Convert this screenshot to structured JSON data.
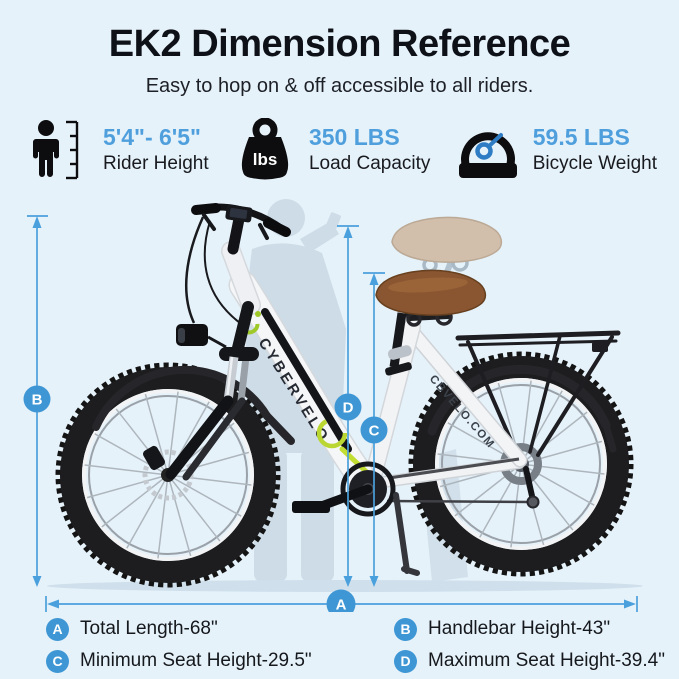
{
  "header": {
    "title": "EK2 Dimension Reference",
    "subtitle": "Easy to hop on & off accessible to all riders."
  },
  "specs": [
    {
      "icon": "rider-height-icon",
      "value": "5'4\"- 6'5\"",
      "label": "Rider Height"
    },
    {
      "icon": "load-capacity-icon",
      "value": "350 LBS",
      "label": "Load Capacity",
      "icon_text": "lbs"
    },
    {
      "icon": "bicycle-weight-icon",
      "value": "59.5 LBS",
      "label": "Bicycle Weight"
    }
  ],
  "bike": {
    "brand_downtube": "CYBERVELO",
    "brand_seatstay": "CBVELO.COM"
  },
  "dimensions": {
    "A": {
      "label": "A"
    },
    "B": {
      "label": "B"
    },
    "C": {
      "label": "C"
    },
    "D": {
      "label": "D"
    }
  },
  "legend": [
    {
      "badge": "A",
      "text": "Total Length-68\""
    },
    {
      "badge": "B",
      "text": "Handlebar Height-43\""
    },
    {
      "badge": "C",
      "text": "Minimum Seat Height-29.5\""
    },
    {
      "badge": "D",
      "text": "Maximum Seat Height-39.4\""
    }
  ],
  "colors": {
    "background": "#e6f2fa",
    "accent_blue": "#4f9fdd",
    "badge_blue": "#3e97d4",
    "dimension_line": "#4aa0dc",
    "title_text": "#0e1117",
    "saddle_brown": "#8a5531",
    "frame_green": "#9ec929"
  }
}
